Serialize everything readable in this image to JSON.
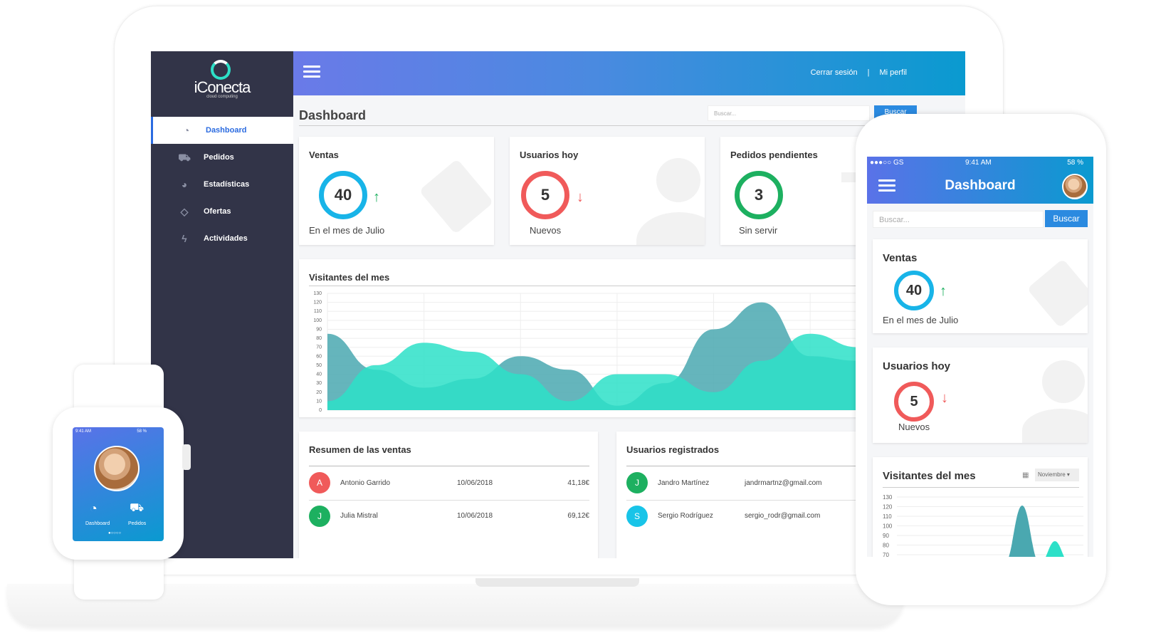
{
  "colors": {
    "accent": "#2b6be0",
    "sidebar": "#323448",
    "teal": "#2de0c8",
    "blue_ring": "#18b4e8",
    "red_ring": "#f05a5a",
    "green_ring": "#1db060"
  },
  "brand": {
    "name": "iConecta",
    "tagline": "cloud computing"
  },
  "sidebar": {
    "items": [
      {
        "label": "Dashboard",
        "icon": "dashboard-gauge-icon"
      },
      {
        "label": "Pedidos",
        "icon": "cart-icon"
      },
      {
        "label": "Estadísticas",
        "icon": "pie-chart-icon"
      },
      {
        "label": "Ofertas",
        "icon": "tag-icon"
      },
      {
        "label": "Actividades",
        "icon": "bolt-icon"
      }
    ]
  },
  "topbar": {
    "logout": "Cerrar sesión",
    "separator": "|",
    "profile": "Mi perfil"
  },
  "main": {
    "title": "Dashboard",
    "search_placeholder": "Buscar...",
    "search_button": "Buscar"
  },
  "stats": [
    {
      "title": "Ventas",
      "value": "40",
      "caption": "En el mes de Julio",
      "trend": "up"
    },
    {
      "title": "Usuarios hoy",
      "value": "5",
      "caption": "Nuevos",
      "trend": "down"
    },
    {
      "title": "Pedidos pendientes",
      "value": "3",
      "caption": "Sin servir",
      "trend": "none"
    }
  ],
  "visits": {
    "title": "Visitantes del mes"
  },
  "chart_data": {
    "type": "area",
    "title": "Visitantes del mes",
    "ylim": [
      0,
      130
    ],
    "yticks": [
      0,
      10,
      20,
      30,
      40,
      50,
      60,
      70,
      80,
      90,
      100,
      110,
      120,
      130
    ],
    "x": [
      0,
      1,
      2,
      3,
      4,
      5,
      6,
      7,
      8,
      9,
      10,
      11
    ],
    "series": [
      {
        "values": [
          85,
          45,
          25,
          35,
          60,
          45,
          5,
          30,
          90,
          120,
          60,
          55
        ],
        "color": "#4aa8b0"
      },
      {
        "values": [
          10,
          50,
          75,
          65,
          40,
          10,
          40,
          40,
          20,
          55,
          85,
          70
        ],
        "color": "#2de0c8"
      }
    ],
    "grid": true
  },
  "sales": {
    "title": "Resumen de las ventas",
    "rows": [
      {
        "initial": "A",
        "name": "Antonio Garrido",
        "date": "10/06/2018",
        "amount": "41,18€",
        "color": "#f05a5a"
      },
      {
        "initial": "J",
        "name": "Julia Mistral",
        "date": "10/06/2018",
        "amount": "69,12€",
        "color": "#1db060"
      }
    ]
  },
  "users": {
    "title": "Usuarios registrados",
    "rows": [
      {
        "initial": "J",
        "name": "Jandro Martínez",
        "email": "jandrmartnz@gmail.com",
        "color": "#1db060"
      },
      {
        "initial": "S",
        "name": "Sergio Rodríguez",
        "email": "sergio_rodr@gmail.com",
        "color": "#18c4e8"
      }
    ]
  },
  "watch": {
    "time": "9:41 AM",
    "battery": "58 %",
    "items": [
      {
        "label": "Dashboard",
        "icon": "dashboard-gauge-icon"
      },
      {
        "label": "Pedidos",
        "icon": "cart-icon"
      }
    ]
  },
  "phone": {
    "carrier": "●●●○○ GS",
    "time": "9:41 AM",
    "battery": "58 %",
    "title": "Dashboard",
    "search_placeholder": "Buscar...",
    "search_button": "Buscar",
    "month": "Noviembre",
    "visits_title": "Visitantes del mes",
    "yticks": [
      "130",
      "120",
      "110",
      "100",
      "90",
      "80",
      "70"
    ]
  }
}
